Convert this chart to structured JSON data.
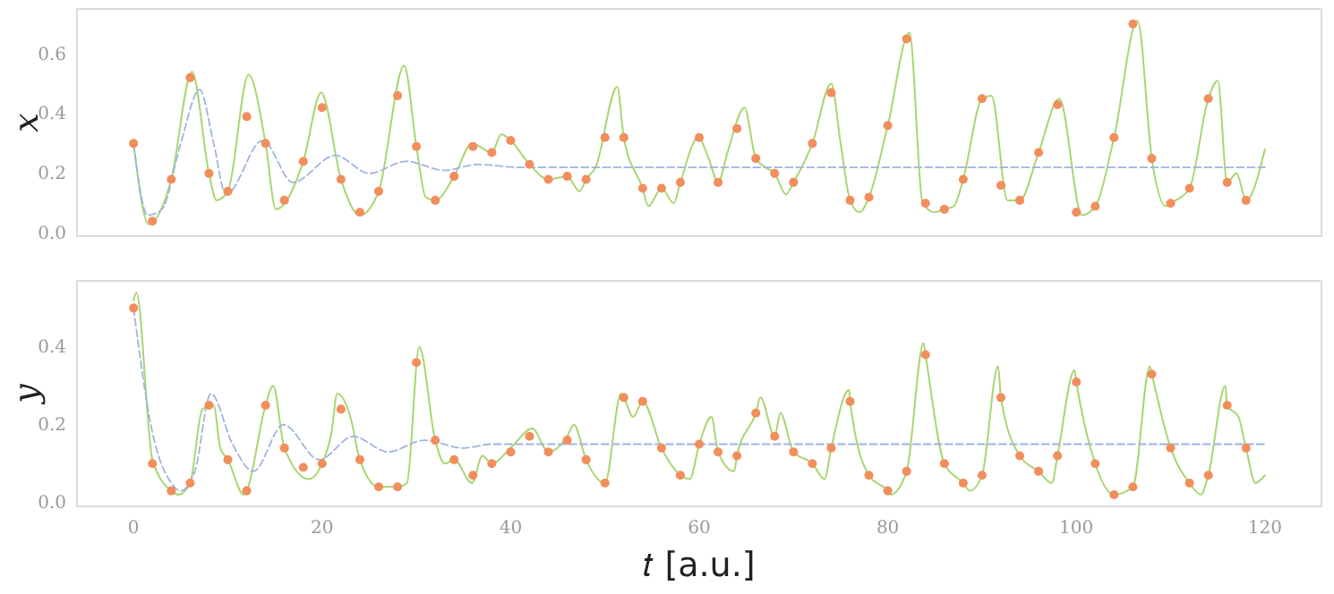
{
  "chart_data": [
    {
      "type": "line",
      "ylabel": "𝑥",
      "xlim": [
        -6,
        126
      ],
      "ylim": [
        -0.01,
        0.75
      ],
      "xticks": [
        0,
        20,
        40,
        60,
        80,
        100,
        120
      ],
      "yticks": [
        {
          "value": 0,
          "label": "0.0"
        },
        {
          "value": 0.2,
          "label": "0.2"
        },
        {
          "value": 0.4,
          "label": "0.4"
        },
        {
          "value": 0.6,
          "label": "0.6"
        }
      ],
      "tick_labels": "y",
      "grid": false,
      "series": [
        {
          "color": "#a8d672",
          "line_style": "solid",
          "x": [
            0,
            1.6,
            4,
            6.2,
            8,
            8.8,
            10,
            12.2,
            14,
            15.1,
            18,
            19.9,
            22,
            24,
            26,
            28.7,
            30,
            31,
            32,
            34,
            35.9,
            38,
            39,
            40,
            42,
            44,
            46,
            47.3,
            48,
            49,
            51.3,
            52,
            54,
            54.6,
            56,
            57.3,
            58,
            59.9,
            61,
            62,
            63,
            64.8,
            66,
            67,
            68,
            69.2,
            70,
            72,
            74,
            75,
            76,
            77,
            78,
            80,
            82.3,
            83.7,
            85,
            86,
            87,
            88,
            90,
            91,
            92.7,
            94,
            96,
            98.2,
            100.6,
            102,
            104,
            106.5,
            108,
            109.5,
            110,
            112,
            114,
            115,
            116,
            117,
            118,
            120
          ],
          "values": [
            0.3,
            0.03,
            0.18,
            0.54,
            0.2,
            0.11,
            0.14,
            0.53,
            0.3,
            0.08,
            0.24,
            0.47,
            0.18,
            0.06,
            0.14,
            0.56,
            0.29,
            0.12,
            0.11,
            0.19,
            0.3,
            0.27,
            0.33,
            0.31,
            0.23,
            0.18,
            0.19,
            0.14,
            0.18,
            0.22,
            0.49,
            0.32,
            0.15,
            0.09,
            0.15,
            0.1,
            0.17,
            0.32,
            0.25,
            0.17,
            0.27,
            0.42,
            0.25,
            0.22,
            0.2,
            0.13,
            0.17,
            0.3,
            0.5,
            0.3,
            0.11,
            0.07,
            0.12,
            0.36,
            0.67,
            0.1,
            0.07,
            0.08,
            0.09,
            0.18,
            0.45,
            0.46,
            0.11,
            0.11,
            0.27,
            0.45,
            0.06,
            0.09,
            0.32,
            0.71,
            0.25,
            0.09,
            0.1,
            0.15,
            0.45,
            0.51,
            0.17,
            0.2,
            0.11,
            0.28
          ]
        },
        {
          "color": "#9fb4e0",
          "line_style": "dashed",
          "x": [
            0,
            1.5,
            3,
            5,
            7,
            8.5,
            9.8,
            13.7,
            16.9,
            21.4,
            25,
            28.9,
            33,
            36.5,
            41,
            120
          ],
          "values": [
            0.3,
            0.06,
            0.08,
            0.3,
            0.48,
            0.3,
            0.13,
            0.31,
            0.17,
            0.26,
            0.2,
            0.24,
            0.21,
            0.23,
            0.22,
            0.22
          ]
        },
        {
          "type": "scatter",
          "color": "#f28e5c",
          "marker": "circle",
          "x": [
            0,
            2,
            4,
            6,
            8,
            10,
            12,
            14,
            16,
            18,
            20,
            22,
            24,
            26,
            28,
            30,
            32,
            34,
            36,
            38,
            40,
            42,
            44,
            46,
            48,
            50,
            52,
            54,
            56,
            58,
            60,
            62,
            64,
            66,
            68,
            70,
            72,
            74,
            76,
            78,
            80,
            82,
            84,
            86,
            88,
            90,
            92,
            94,
            96,
            98,
            100,
            102,
            104,
            106,
            108,
            110,
            112,
            114,
            116,
            118
          ],
          "values": [
            0.3,
            0.04,
            0.18,
            0.52,
            0.2,
            0.14,
            0.39,
            0.3,
            0.11,
            0.24,
            0.42,
            0.18,
            0.07,
            0.14,
            0.46,
            0.29,
            0.11,
            0.19,
            0.29,
            0.27,
            0.31,
            0.23,
            0.18,
            0.19,
            0.18,
            0.32,
            0.32,
            0.15,
            0.15,
            0.17,
            0.32,
            0.17,
            0.35,
            0.25,
            0.2,
            0.17,
            0.3,
            0.47,
            0.11,
            0.12,
            0.36,
            0.65,
            0.1,
            0.08,
            0.18,
            0.45,
            0.16,
            0.11,
            0.27,
            0.43,
            0.07,
            0.09,
            0.32,
            0.7,
            0.25,
            0.1,
            0.15,
            0.45,
            0.17,
            0.11
          ]
        }
      ]
    },
    {
      "type": "line",
      "xlabel": "𝑡 [a.u.]",
      "ylabel": "𝑦",
      "xlim": [
        -6,
        126
      ],
      "ylim": [
        -0.01,
        0.57
      ],
      "xticks": [
        0,
        20,
        40,
        60,
        80,
        100,
        120
      ],
      "yticks": [
        {
          "value": 0,
          "label": "0.0"
        },
        {
          "value": 0.2,
          "label": "0.2"
        },
        {
          "value": 0.4,
          "label": "0.4"
        }
      ],
      "grid": false,
      "series": [
        {
          "color": "#a8d672",
          "line_style": "solid",
          "x": [
            0,
            0.3,
            2,
            4,
            4.8,
            6,
            7.3,
            8.5,
            9.2,
            10,
            11.7,
            12,
            14,
            14.8,
            16,
            18.6,
            20,
            21,
            21.6,
            23,
            24,
            26,
            28,
            29,
            30.3,
            32,
            33,
            34,
            35.9,
            37,
            38,
            40,
            42.3,
            44,
            46,
            46.7,
            48,
            50,
            51.7,
            53,
            54,
            56,
            58,
            59,
            60,
            61.3,
            62,
            63.7,
            64,
            66,
            66.5,
            68,
            68.6,
            70,
            72,
            73.3,
            74,
            75.9,
            76,
            78,
            80,
            80.3,
            82,
            83.8,
            84,
            86,
            88,
            88.7,
            90,
            91.7,
            92,
            94,
            96,
            97.4,
            98,
            99.8,
            100,
            102,
            104,
            106,
            107.8,
            108,
            110,
            112,
            113.2,
            114,
            115.8,
            116,
            117.2,
            118,
            119,
            120
          ],
          "values": [
            0.52,
            0.54,
            0.11,
            0.03,
            0.02,
            0.05,
            0.24,
            0.25,
            0.14,
            0.11,
            0.02,
            0.03,
            0.25,
            0.3,
            0.14,
            0.06,
            0.1,
            0.18,
            0.28,
            0.22,
            0.11,
            0.04,
            0.04,
            0.05,
            0.4,
            0.16,
            0.1,
            0.11,
            0.05,
            0.12,
            0.1,
            0.14,
            0.19,
            0.13,
            0.17,
            0.2,
            0.11,
            0.05,
            0.28,
            0.22,
            0.26,
            0.14,
            0.07,
            0.06,
            0.15,
            0.22,
            0.13,
            0.08,
            0.12,
            0.23,
            0.27,
            0.17,
            0.23,
            0.13,
            0.1,
            0.06,
            0.14,
            0.29,
            0.26,
            0.07,
            0.03,
            0.02,
            0.08,
            0.41,
            0.38,
            0.1,
            0.05,
            0.03,
            0.07,
            0.35,
            0.27,
            0.12,
            0.08,
            0.05,
            0.12,
            0.34,
            0.31,
            0.1,
            0.02,
            0.04,
            0.35,
            0.33,
            0.14,
            0.05,
            0.02,
            0.07,
            0.3,
            0.25,
            0.22,
            0.14,
            0.05,
            0.07
          ]
        },
        {
          "color": "#9fb4e0",
          "line_style": "dashed",
          "x": [
            0,
            2,
            4,
            5,
            6.5,
            8.2,
            10.5,
            12.7,
            15.9,
            19.7,
            23.3,
            27,
            30.8,
            35,
            38,
            120
          ],
          "values": [
            0.5,
            0.18,
            0.05,
            0.03,
            0.08,
            0.28,
            0.15,
            0.08,
            0.2,
            0.11,
            0.17,
            0.13,
            0.16,
            0.14,
            0.15,
            0.15
          ]
        },
        {
          "type": "scatter",
          "color": "#f28e5c",
          "marker": "circle",
          "x": [
            0,
            2,
            4,
            6,
            8,
            10,
            12,
            14,
            16,
            18,
            20,
            22,
            24,
            26,
            28,
            30,
            32,
            34,
            36,
            38,
            40,
            42,
            44,
            46,
            48,
            50,
            52,
            54,
            56,
            58,
            60,
            62,
            64,
            66,
            68,
            70,
            72,
            74,
            76,
            78,
            80,
            82,
            84,
            86,
            88,
            90,
            92,
            94,
            96,
            98,
            100,
            102,
            104,
            106,
            108,
            110,
            112,
            114,
            116,
            118
          ],
          "values": [
            0.5,
            0.1,
            0.03,
            0.05,
            0.25,
            0.11,
            0.03,
            0.25,
            0.14,
            0.09,
            0.1,
            0.24,
            0.11,
            0.04,
            0.04,
            0.36,
            0.16,
            0.11,
            0.07,
            0.1,
            0.13,
            0.17,
            0.13,
            0.16,
            0.11,
            0.05,
            0.27,
            0.26,
            0.14,
            0.07,
            0.15,
            0.13,
            0.12,
            0.23,
            0.17,
            0.13,
            0.1,
            0.14,
            0.26,
            0.07,
            0.03,
            0.08,
            0.38,
            0.1,
            0.05,
            0.07,
            0.27,
            0.12,
            0.08,
            0.12,
            0.31,
            0.1,
            0.02,
            0.04,
            0.33,
            0.14,
            0.05,
            0.07,
            0.25,
            0.14
          ]
        }
      ]
    }
  ]
}
